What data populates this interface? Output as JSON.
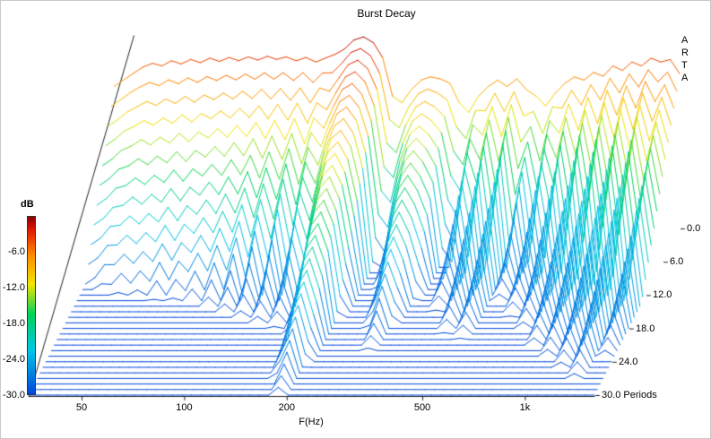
{
  "chart_data": {
    "type": "line",
    "variant": "3d-waterfall-burst-decay",
    "title": "Burst Decay",
    "xlabel": "F(Hz)",
    "depth_axis_label": "Periods",
    "watermark_letters": [
      "A",
      "R",
      "T",
      "A"
    ],
    "colorbar": {
      "label": "dB",
      "max_db": 0,
      "min_db": -30,
      "ticks": [
        {
          "label": "-6.0",
          "db": -6
        },
        {
          "label": "-12.0",
          "db": -12
        },
        {
          "label": "-18.0",
          "db": -18
        },
        {
          "label": "-24.0",
          "db": -24
        },
        {
          "label": "-30.0",
          "db": -30
        }
      ]
    },
    "x_ticks": [
      {
        "label": "50",
        "f": 50
      },
      {
        "label": "100",
        "f": 100
      },
      {
        "label": "200",
        "f": 200
      },
      {
        "label": "500",
        "f": 500
      },
      {
        "label": "1k",
        "f": 1000
      }
    ],
    "period_ticks": [
      {
        "label": "0.0",
        "p": 0
      },
      {
        "label": "6.0",
        "p": 6
      },
      {
        "label": "12.0",
        "p": 12
      },
      {
        "label": "18.0",
        "p": 18
      },
      {
        "label": "24.0",
        "p": 24
      },
      {
        "label": "30.0",
        "p": 30
      }
    ],
    "periods": {
      "min": 0,
      "max": 30,
      "step": 1,
      "rows": 31
    },
    "floor_db": -30,
    "colormap": [
      {
        "v": 0.0,
        "color": "#0046dc"
      },
      {
        "v": 0.25,
        "color": "#00c8e6"
      },
      {
        "v": 0.45,
        "color": "#00d25a"
      },
      {
        "v": 0.62,
        "color": "#f0e600"
      },
      {
        "v": 0.78,
        "color": "#ff8c00"
      },
      {
        "v": 0.92,
        "color": "#e11e00"
      },
      {
        "v": 1.0,
        "color": "#8c0000"
      }
    ],
    "frequencies": [
      35,
      37.3,
      39.8,
      42.5,
      45.4,
      48.4,
      51.6,
      55.1,
      58.8,
      62.7,
      66.9,
      71.4,
      76.2,
      81.3,
      86.7,
      92.5,
      98.7,
      105,
      112,
      120,
      128,
      137,
      146,
      156,
      166,
      177,
      189,
      202,
      215,
      230,
      245,
      261,
      279,
      297,
      317,
      339,
      361,
      385,
      411,
      439,
      468,
      499,
      533,
      569,
      607,
      647,
      691,
      737,
      786,
      839,
      895,
      955,
      1019,
      1087,
      1160,
      1237,
      1320,
      1409,
      1503,
      1600
    ],
    "magnitude_db": [
      -8.0,
      -7.0,
      -6.0,
      -5.0,
      -4.4,
      -4.8,
      -4.0,
      -4.5,
      -3.8,
      -4.3,
      -3.6,
      -4.1,
      -3.5,
      -4.0,
      -3.4,
      -3.9,
      -3.3,
      -3.8,
      -3.4,
      -4.0,
      -3.5,
      -4.2,
      -3.6,
      -3.0,
      -2.2,
      -0.8,
      -0.3,
      -1.2,
      -3.5,
      -9.5,
      -10.5,
      -8.5,
      -7.0,
      -6.5,
      -6.8,
      -7.5,
      -10.5,
      -12.0,
      -9.5,
      -8.0,
      -7.0,
      -8.0,
      -6.8,
      -8.5,
      -9.5,
      -11.0,
      -9.0,
      -7.5,
      -6.5,
      -7.0,
      -5.8,
      -6.4,
      -4.8,
      -5.5,
      -4.2,
      -4.8,
      -3.6,
      -4.2,
      -3.8,
      -6.0
    ],
    "decay_db_per_period": [
      2.2,
      2.2,
      2.1,
      2.2,
      2.1,
      2.2,
      2.1,
      2.2,
      2.0,
      2.2,
      2.0,
      2.1,
      1.9,
      2.1,
      1.8,
      2.1,
      1.7,
      2.2,
      1.6,
      2.2,
      1.5,
      2.3,
      1.45,
      2.0,
      1.4,
      1.05,
      0.95,
      1.15,
      1.6,
      2.8,
      3.0,
      1.9,
      1.25,
      1.05,
      1.3,
      1.7,
      2.9,
      3.2,
      1.35,
      2.9,
      1.2,
      3.0,
      1.15,
      3.2,
      1.5,
      3.4,
      1.3,
      3.0,
      1.25,
      3.0,
      1.1,
      2.8,
      1.05,
      2.6,
      1.0,
      2.4,
      0.95,
      2.2,
      1.1,
      1.8
    ]
  }
}
